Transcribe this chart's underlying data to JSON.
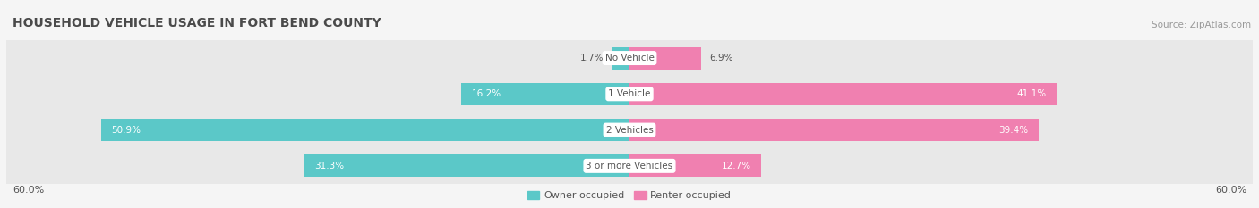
{
  "title": "HOUSEHOLD VEHICLE USAGE IN FORT BEND COUNTY",
  "source": "Source: ZipAtlas.com",
  "categories": [
    "No Vehicle",
    "1 Vehicle",
    "2 Vehicles",
    "3 or more Vehicles"
  ],
  "owner_values": [
    1.7,
    16.2,
    50.9,
    31.3
  ],
  "renter_values": [
    6.9,
    41.1,
    39.4,
    12.7
  ],
  "owner_color": "#5bc8c8",
  "renter_color": "#f080b0",
  "owner_label": "Owner-occupied",
  "renter_label": "Renter-occupied",
  "axis_max": 60.0,
  "background_color": "#f5f5f5",
  "bar_bg_color": "#e8e8e8",
  "title_fontsize": 10,
  "source_fontsize": 7.5,
  "value_fontsize": 7.5,
  "cat_fontsize": 7.5,
  "tick_fontsize": 8,
  "legend_fontsize": 8,
  "bar_height": 0.62,
  "bar_bg_extra": 0.38
}
